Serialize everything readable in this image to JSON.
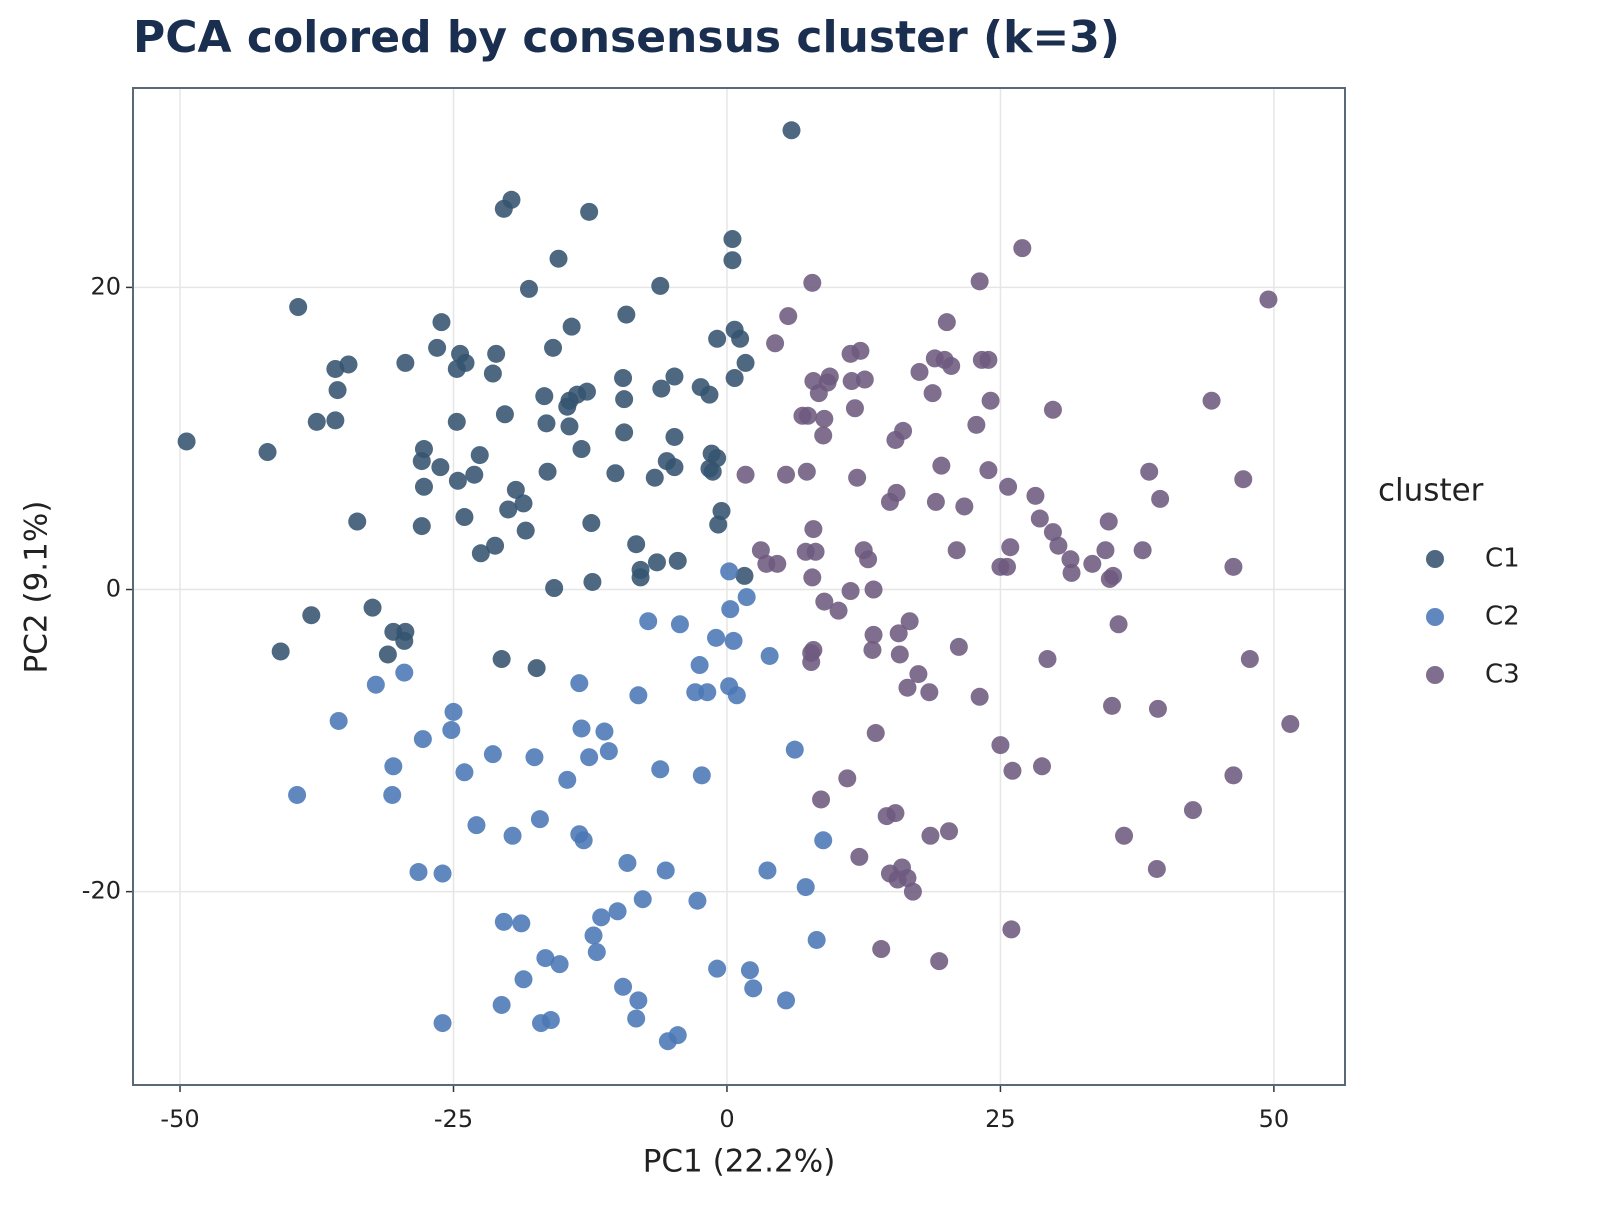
{
  "chart_data": {
    "type": "scatter",
    "title": "PCA colored by consensus cluster (k=3)",
    "x_label": "PC1 (22.2%)",
    "y_label": "PC2 (9.1%)",
    "xlim": [
      -54.3,
      56.5
    ],
    "ylim": [
      -32.8,
      33.2
    ],
    "xticks": [
      -50,
      -25,
      0,
      25,
      50
    ],
    "yticks": [
      -20,
      0,
      20
    ],
    "grid": true,
    "legend": "right",
    "legend_title": "cluster",
    "series": [
      {
        "name": "C1",
        "color": "#34536e",
        "x": [
          5.9,
          -19.7,
          -20.4,
          -12.6,
          0.5,
          0.5,
          -15.4,
          -18.1,
          -6.1,
          -39.2,
          -9.2,
          -26.1,
          -14.2,
          0.7,
          -0.9,
          1.2,
          -26.5,
          -15.9,
          -24.4,
          -21.1,
          1.7,
          -29.4,
          -34.6,
          -23.9,
          -35.8,
          -24.7,
          -21.4,
          -9.5,
          -4.8,
          0.7,
          -2.4,
          -6.0,
          -35.6,
          -12.8,
          -13.7,
          -16.7,
          -1.6,
          -14.4,
          -9.4,
          -14.6,
          -20.3,
          -37.5,
          -35.8,
          -24.7,
          -16.5,
          -14.4,
          -9.4,
          -49.4,
          -4.8,
          -13.3,
          -27.7,
          -42.0,
          -22.6,
          -1.4,
          -0.9,
          -27.9,
          -26.2,
          -5.5,
          -4.8,
          -1.6,
          -1.3,
          -16.4,
          -10.2,
          -23.1,
          -6.6,
          -24.6,
          -27.7,
          -19.3,
          -18.6,
          -20.0,
          -0.5,
          -24.0,
          -33.8,
          -12.4,
          -27.9,
          -0.8,
          -18.4,
          -21.2,
          -8.3,
          -22.5,
          -6.4,
          -4.5,
          -7.9,
          1.6,
          -7.9,
          -12.3,
          -15.8,
          -32.4,
          -38.0,
          -30.5,
          -29.4,
          -29.5,
          -40.8,
          -31.0,
          -20.6,
          -17.4
        ],
        "values": [
          30.4,
          25.8,
          25.2,
          25.0,
          23.2,
          21.8,
          21.9,
          19.9,
          20.1,
          18.7,
          18.2,
          17.7,
          17.4,
          17.2,
          16.6,
          16.6,
          16.0,
          16.0,
          15.6,
          15.6,
          15.0,
          15.0,
          14.9,
          15.0,
          14.6,
          14.6,
          14.3,
          14.0,
          14.1,
          14.0,
          13.4,
          13.3,
          13.2,
          13.1,
          12.9,
          12.8,
          12.9,
          12.5,
          12.6,
          12.1,
          11.6,
          11.1,
          11.2,
          11.1,
          11.0,
          10.8,
          10.4,
          9.8,
          10.1,
          9.3,
          9.3,
          9.1,
          8.9,
          9.0,
          8.7,
          8.5,
          8.1,
          8.5,
          8.1,
          8.0,
          7.8,
          7.8,
          7.7,
          7.6,
          7.4,
          7.2,
          6.8,
          6.6,
          5.7,
          5.3,
          5.2,
          4.8,
          4.5,
          4.4,
          4.2,
          4.3,
          3.9,
          2.9,
          3.0,
          2.4,
          1.8,
          1.9,
          1.3,
          0.9,
          0.8,
          0.5,
          0.1,
          -1.2,
          -1.7,
          -2.8,
          -2.8,
          -3.4,
          -4.1,
          -4.3,
          -4.6,
          -5.2
        ]
      },
      {
        "name": "C2",
        "color": "#4a78b5",
        "x": [
          0.2,
          1.8,
          0.3,
          -7.2,
          -4.3,
          -1.0,
          0.6,
          3.9,
          -2.5,
          -32.1,
          -13.5,
          0.2,
          -2.9,
          -1.8,
          0.9,
          -8.1,
          -29.5,
          -25.0,
          -35.5,
          -13.3,
          -11.2,
          -25.2,
          -27.8,
          -10.8,
          -21.4,
          -17.6,
          -12.6,
          6.2,
          -30.5,
          -24.0,
          -6.1,
          -2.3,
          -14.6,
          -39.3,
          -30.6,
          -17.1,
          -22.9,
          -13.5,
          -19.6,
          -13.1,
          8.8,
          -9.1,
          -28.2,
          -26.0,
          -5.6,
          3.7,
          7.2,
          -7.7,
          -2.7,
          -10.0,
          -11.5,
          -20.4,
          -18.8,
          -12.2,
          8.2,
          -11.9,
          -16.6,
          -15.3,
          -0.9,
          2.1,
          -18.6,
          -9.5,
          2.4,
          -8.1,
          5.4,
          -20.6,
          -8.3,
          -16.1,
          -26.0,
          -17.0,
          -4.5,
          -5.4
        ],
        "values": [
          1.2,
          -0.5,
          -1.3,
          -2.1,
          -2.3,
          -3.2,
          -3.4,
          -4.4,
          -5.0,
          -6.3,
          -6.2,
          -6.4,
          -6.8,
          -6.8,
          -7.0,
          -7.0,
          -5.5,
          -8.1,
          -8.7,
          -9.2,
          -9.4,
          -9.3,
          -9.9,
          -10.7,
          -10.9,
          -11.1,
          -11.1,
          -10.6,
          -11.7,
          -12.1,
          -11.9,
          -12.3,
          -12.6,
          -13.6,
          -13.6,
          -15.2,
          -15.6,
          -16.2,
          -16.3,
          -16.6,
          -16.6,
          -18.1,
          -18.7,
          -18.8,
          -18.6,
          -18.6,
          -19.7,
          -20.5,
          -20.6,
          -21.3,
          -21.7,
          -22.0,
          -22.1,
          -22.9,
          -23.2,
          -24.0,
          -24.4,
          -24.8,
          -25.1,
          -25.2,
          -25.8,
          -26.3,
          -26.4,
          -27.2,
          -27.2,
          -27.5,
          -28.4,
          -28.5,
          -28.7,
          -28.7,
          -29.5,
          -29.9
        ]
      },
      {
        "name": "C3",
        "color": "#6e5a80",
        "x": [
          27.0,
          23.1,
          7.8,
          49.5,
          5.6,
          20.1,
          4.4,
          12.2,
          11.3,
          19.0,
          19.9,
          23.3,
          23.9,
          20.5,
          17.6,
          9.4,
          7.9,
          9.2,
          11.4,
          12.6,
          8.4,
          18.8,
          24.1,
          44.3,
          11.7,
          29.8,
          6.9,
          7.4,
          8.9,
          22.8,
          16.1,
          8.8,
          15.4,
          19.6,
          1.7,
          5.4,
          7.3,
          11.9,
          23.9,
          38.6,
          47.2,
          25.7,
          15.5,
          28.2,
          14.9,
          19.1,
          39.6,
          21.7,
          28.6,
          34.9,
          7.9,
          29.8,
          30.3,
          3.1,
          21.0,
          12.5,
          25.9,
          7.2,
          8.1,
          34.6,
          38.0,
          12.9,
          3.6,
          4.6,
          31.4,
          33.4,
          25.0,
          25.6,
          46.3,
          31.5,
          35.3,
          35.0,
          7.8,
          11.3,
          13.4,
          8.9,
          10.2,
          16.7,
          35.8,
          13.4,
          15.7,
          7.9,
          7.7,
          13.3,
          21.2,
          15.8,
          29.3,
          47.8,
          7.7,
          17.5,
          16.5,
          18.5,
          23.1,
          35.2,
          39.4,
          51.5,
          13.6,
          25.0,
          26.1,
          28.8,
          11.0,
          46.3,
          8.6,
          42.6,
          15.4,
          14.6,
          20.3,
          18.6,
          36.3,
          12.1,
          16.0,
          39.3,
          14.9,
          16.5,
          15.6,
          17.0,
          26.0,
          14.1,
          19.4
        ],
        "values": [
          22.6,
          20.4,
          20.3,
          19.2,
          18.1,
          17.7,
          16.3,
          15.8,
          15.6,
          15.3,
          15.2,
          15.2,
          15.2,
          14.8,
          14.4,
          14.1,
          13.8,
          13.7,
          13.8,
          13.9,
          13.0,
          13.0,
          12.5,
          12.5,
          12.0,
          11.9,
          11.5,
          11.5,
          11.3,
          10.9,
          10.5,
          10.2,
          9.9,
          8.2,
          7.6,
          7.6,
          7.8,
          7.4,
          7.9,
          7.8,
          7.3,
          6.8,
          6.4,
          6.2,
          5.8,
          5.8,
          6.0,
          5.5,
          4.7,
          4.5,
          4.0,
          3.8,
          2.9,
          2.6,
          2.6,
          2.6,
          2.8,
          2.5,
          2.5,
          2.6,
          2.6,
          2.0,
          1.7,
          1.7,
          2.0,
          1.7,
          1.5,
          1.5,
          1.5,
          1.1,
          0.9,
          0.7,
          0.8,
          -0.1,
          0.0,
          -0.8,
          -1.4,
          -2.1,
          -2.3,
          -3.0,
          -2.9,
          -4.0,
          -4.2,
          -4.0,
          -3.8,
          -4.3,
          -4.6,
          -4.6,
          -4.8,
          -5.6,
          -6.5,
          -6.8,
          -7.1,
          -7.7,
          -7.9,
          -8.9,
          -9.5,
          -10.3,
          -12.0,
          -11.7,
          -12.5,
          -12.3,
          -13.9,
          -14.6,
          -14.8,
          -15.0,
          -16.0,
          -16.3,
          -16.3,
          -17.7,
          -18.4,
          -18.5,
          -18.8,
          -19.1,
          -19.2,
          -20.0,
          -22.5,
          -23.8,
          -24.6
        ]
      }
    ]
  }
}
